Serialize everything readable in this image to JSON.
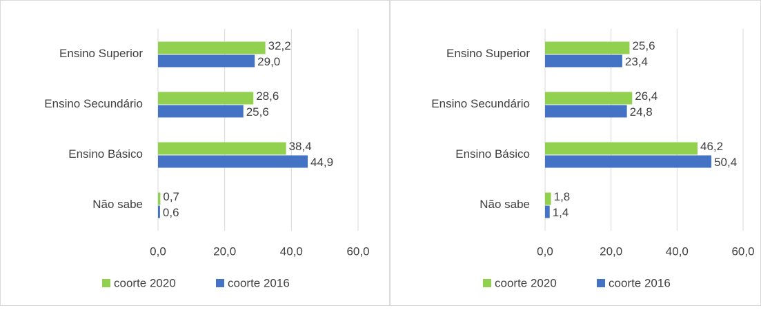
{
  "chart_data": [
    {
      "type": "bar",
      "orientation": "horizontal",
      "categories": [
        "Ensino Superior",
        "Ensino Secundário",
        "Ensino Básico",
        "Não sabe"
      ],
      "series": [
        {
          "name": "coorte 2020",
          "color": "#92d050",
          "values": [
            32.2,
            28.6,
            38.4,
            0.7
          ],
          "value_labels": [
            "32,2",
            "28,6",
            "38,4",
            "0,7"
          ]
        },
        {
          "name": "coorte 2016",
          "color": "#4472c4",
          "values": [
            29.0,
            25.6,
            44.9,
            0.6
          ],
          "value_labels": [
            "29,0",
            "25,6",
            "44,9",
            "0,6"
          ]
        }
      ],
      "xlim": [
        0,
        60
      ],
      "xticks": [
        {
          "value": 0,
          "label": "0,0"
        },
        {
          "value": 20,
          "label": "20,0"
        },
        {
          "value": 40,
          "label": "40,0"
        },
        {
          "value": 60,
          "label": "60,0"
        }
      ],
      "grid": true,
      "legend": "bottom"
    },
    {
      "type": "bar",
      "orientation": "horizontal",
      "categories": [
        "Ensino Superior",
        "Ensino Secundário",
        "Ensino Básico",
        "Não sabe"
      ],
      "series": [
        {
          "name": "coorte 2020",
          "color": "#92d050",
          "values": [
            25.6,
            26.4,
            46.2,
            1.8
          ],
          "value_labels": [
            "25,6",
            "26,4",
            "46,2",
            "1,8"
          ]
        },
        {
          "name": "coorte 2016",
          "color": "#4472c4",
          "values": [
            23.4,
            24.8,
            50.4,
            1.4
          ],
          "value_labels": [
            "23,4",
            "24,8",
            "50,4",
            "1,4"
          ]
        }
      ],
      "xlim": [
        0,
        60
      ],
      "xticks": [
        {
          "value": 0,
          "label": "0,0"
        },
        {
          "value": 20,
          "label": "20,0"
        },
        {
          "value": 40,
          "label": "40,0"
        },
        {
          "value": 60,
          "label": "60,0"
        }
      ],
      "grid": true,
      "legend": "bottom"
    }
  ]
}
